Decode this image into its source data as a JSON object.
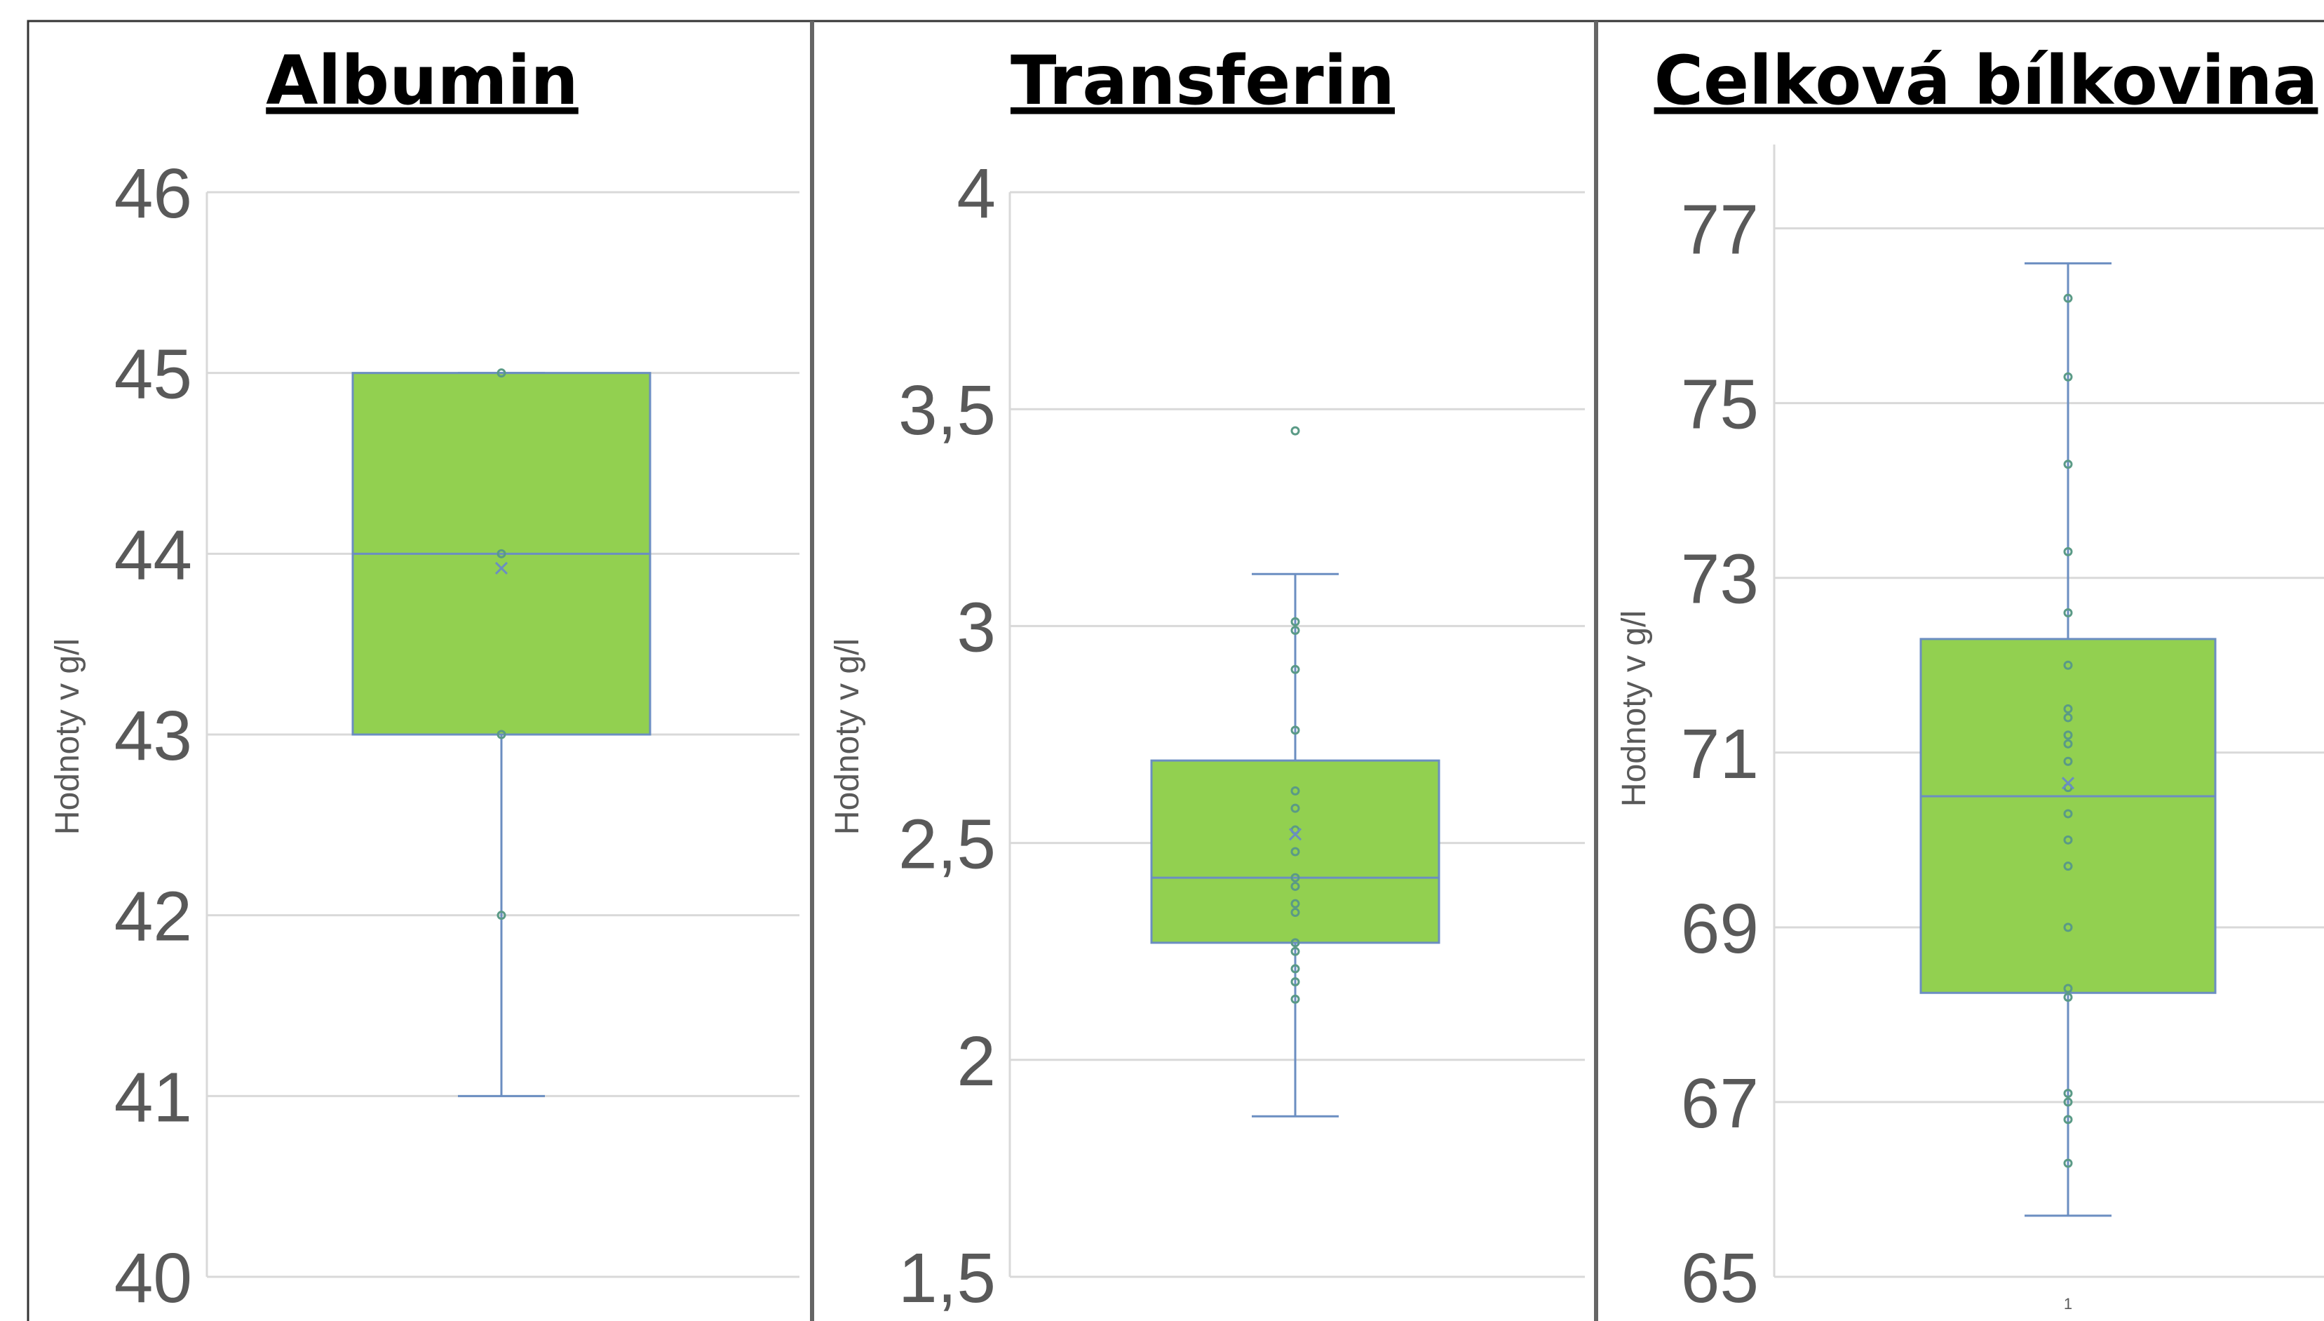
{
  "chart_data": [
    {
      "type": "box",
      "title": "Albumin",
      "ylabel": "Hodnoty v g/l",
      "ylim": [
        40,
        46
      ],
      "yticks": [
        40,
        41,
        42,
        43,
        44,
        45,
        46
      ],
      "ytick_labels": [
        "40",
        "41",
        "42",
        "43",
        "44",
        "45",
        "46"
      ],
      "xtick_labels": [],
      "box": {
        "min": 41,
        "q1": 43,
        "median": 44,
        "q3": 45,
        "max": 45,
        "mean": 43.92
      },
      "points": [
        45,
        44,
        43,
        42
      ],
      "grid": true
    },
    {
      "type": "box",
      "title": "Transferin",
      "ylabel": "Hodnoty v g/l",
      "ylim": [
        1.5,
        4
      ],
      "yticks": [
        1.5,
        2,
        2.5,
        3,
        3.5,
        4
      ],
      "ytick_labels": [
        "1,5",
        "2",
        "2,5",
        "3",
        "3,5",
        "4"
      ],
      "xtick_labels": [],
      "box": {
        "min": 1.87,
        "q1": 2.27,
        "median": 2.42,
        "q3": 2.69,
        "max": 3.12,
        "mean": 2.52
      },
      "points": [
        3.45,
        3.01,
        2.99,
        2.9,
        2.76,
        2.62,
        2.58,
        2.53,
        2.48,
        2.42,
        2.4,
        2.36,
        2.34,
        2.27,
        2.25,
        2.21,
        2.18,
        2.14
      ],
      "grid": true
    },
    {
      "type": "box",
      "title": "Celková bílkovina",
      "ylabel": "Hodnoty v g/l",
      "ylim": [
        65,
        77.96
      ],
      "yticks": [
        65,
        67,
        69,
        71,
        73,
        75,
        77
      ],
      "ytick_labels": [
        "65",
        "67",
        "69",
        "71",
        "73",
        "75",
        "77"
      ],
      "xtick_labels": [
        "1"
      ],
      "box": {
        "min": 65.7,
        "q1": 68.25,
        "median": 70.5,
        "q3": 72.3,
        "max": 76.6,
        "mean": 70.65
      },
      "points": [
        76.2,
        75.3,
        74.3,
        73.3,
        72.6,
        72.0,
        71.5,
        71.4,
        71.2,
        71.1,
        70.9,
        70.6,
        70.3,
        70.0,
        69.7,
        69.0,
        68.3,
        68.2,
        67.1,
        67.0,
        66.8,
        66.3
      ],
      "grid": true
    }
  ]
}
